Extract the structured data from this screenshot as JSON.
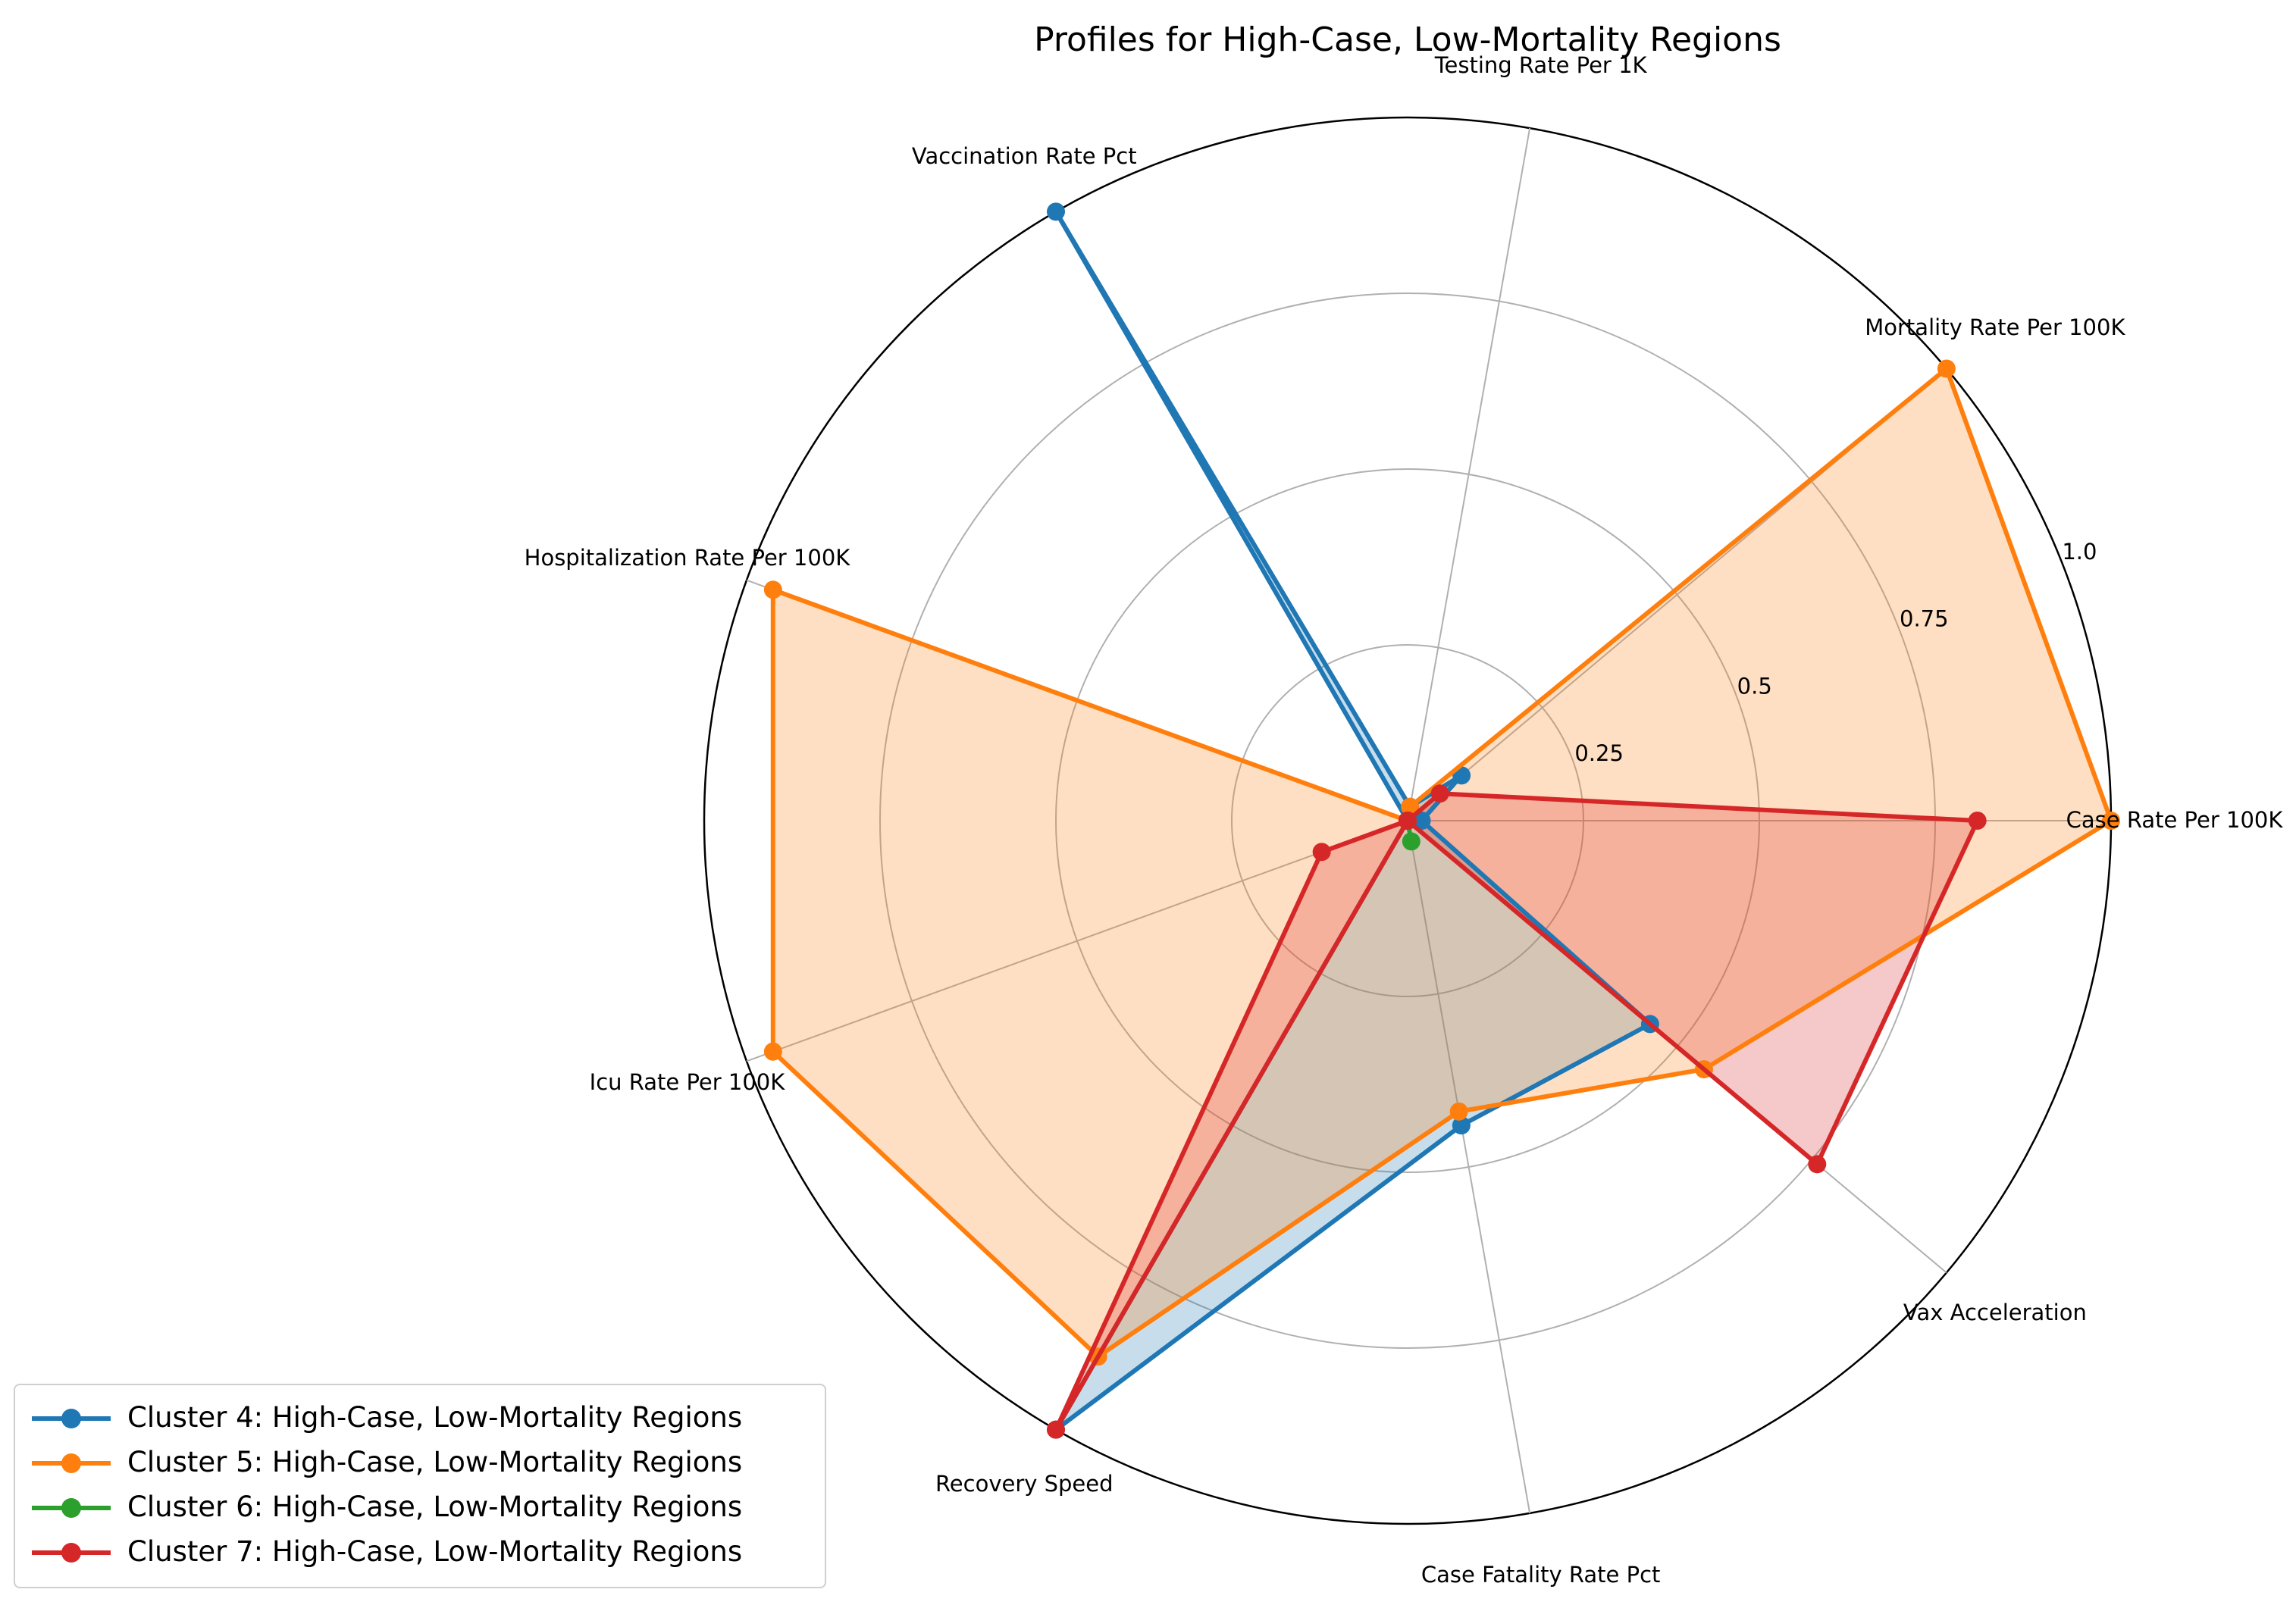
{
  "chart_data": {
    "type": "radar",
    "title": "Profiles for High-Case, Low-Mortality Regions",
    "axes": [
      "Case Rate Per 100K",
      "Mortality Rate Per 100K",
      "Testing Rate Per 1K",
      "Vaccination Rate Pct",
      "Hospitalization Rate Per 100K",
      "Icu Rate Per 100K",
      "Recovery Speed",
      "Case Fatality Rate Pct",
      "Vax Acceleration"
    ],
    "radial_ticks": [
      0.25,
      0.5,
      0.75,
      1.0
    ],
    "radial_tick_labels": [
      "0.25",
      "0.5",
      "0.75",
      "1.0"
    ],
    "rlim": [
      0,
      1
    ],
    "grid": true,
    "legend_position": "lower-left",
    "series": [
      {
        "name": "Cluster 4: High-Case, Low-Mortality Regions",
        "color": "#1f77b4",
        "values": [
          0.02,
          0.1,
          0.02,
          1.0,
          0.0,
          0.0,
          1.0,
          0.44,
          0.45
        ]
      },
      {
        "name": "Cluster 5: High-Case, Low-Mortality Regions",
        "color": "#ff7f0e",
        "values": [
          1.0,
          1.0,
          0.02,
          0.0,
          0.96,
          0.96,
          0.88,
          0.42,
          0.55
        ]
      },
      {
        "name": "Cluster 6: High-Case, Low-Mortality Regions",
        "color": "#2ca02c",
        "values": [
          0.0,
          0.0,
          0.0,
          0.0,
          0.0,
          0.0,
          0.0,
          0.03,
          0.0
        ]
      },
      {
        "name": "Cluster 7: High-Case, Low-Mortality Regions",
        "color": "#d62728",
        "values": [
          0.81,
          0.06,
          0.0,
          0.0,
          0.0,
          0.13,
          1.0,
          0.0,
          0.76
        ]
      }
    ]
  }
}
